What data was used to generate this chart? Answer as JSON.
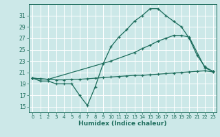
{
  "xlabel": "Humidex (Indice chaleur)",
  "xlim": [
    -0.5,
    23.5
  ],
  "ylim": [
    14,
    33
  ],
  "yticks": [
    15,
    17,
    19,
    21,
    23,
    25,
    27,
    29,
    31
  ],
  "xticks": [
    0,
    1,
    2,
    3,
    4,
    5,
    6,
    7,
    8,
    9,
    10,
    11,
    12,
    13,
    14,
    15,
    16,
    17,
    18,
    19,
    20,
    21,
    22,
    23
  ],
  "bg_color": "#cce8e8",
  "grid_color": "#b8d8d8",
  "line_color": "#1a6b5a",
  "line1_x": [
    0,
    1,
    2,
    3,
    4,
    5,
    6,
    7,
    8,
    9,
    10,
    11,
    12,
    13,
    14,
    15,
    16,
    17,
    18,
    19,
    20,
    21,
    22,
    23
  ],
  "line1_y": [
    20.0,
    19.5,
    19.5,
    19.0,
    19.0,
    19.0,
    17.0,
    15.2,
    18.5,
    22.5,
    25.5,
    27.2,
    28.5,
    30.0,
    31.0,
    32.2,
    32.2,
    31.0,
    30.0,
    29.0,
    27.0,
    24.0,
    22.0,
    21.2
  ],
  "line2_x": [
    0,
    2,
    10,
    13,
    14,
    15,
    16,
    17,
    18,
    19,
    20,
    22,
    23
  ],
  "line2_y": [
    20.0,
    19.8,
    23.0,
    24.5,
    25.2,
    25.8,
    26.5,
    27.0,
    27.5,
    27.5,
    27.2,
    21.8,
    21.2
  ],
  "line3_x": [
    0,
    1,
    2,
    3,
    4,
    5,
    6,
    7,
    8,
    9,
    10,
    11,
    12,
    13,
    14,
    15,
    16,
    17,
    18,
    19,
    20,
    21,
    22,
    23
  ],
  "line3_y": [
    20.0,
    19.9,
    19.8,
    19.7,
    19.7,
    19.8,
    19.8,
    19.9,
    20.0,
    20.1,
    20.2,
    20.3,
    20.4,
    20.5,
    20.5,
    20.6,
    20.7,
    20.8,
    20.9,
    21.0,
    21.1,
    21.2,
    21.3,
    21.1
  ]
}
